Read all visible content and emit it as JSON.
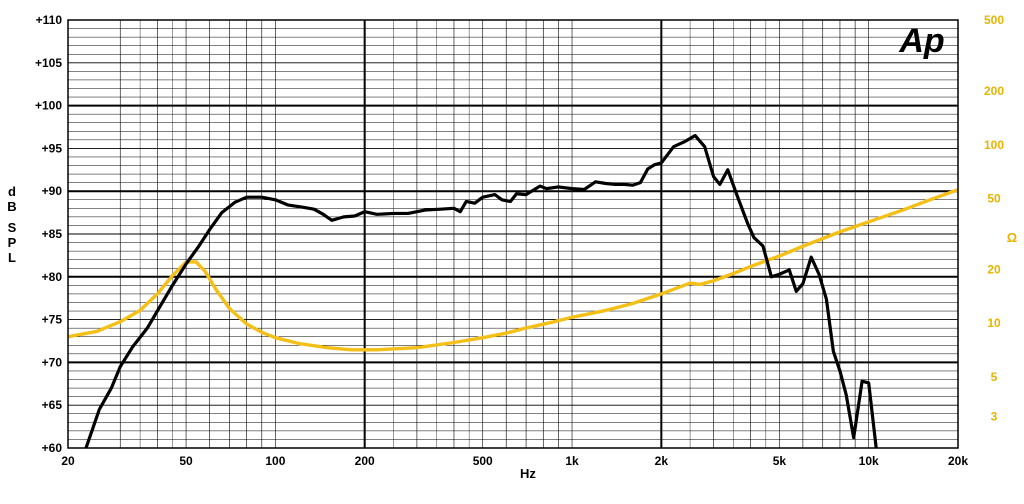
{
  "chart_data": {
    "type": "line",
    "xscale": "log",
    "xlim": [
      20,
      20000
    ],
    "xlabel": "Hz",
    "x_ticks": [
      {
        "v": 20,
        "label": "20"
      },
      {
        "v": 50,
        "label": "50"
      },
      {
        "v": 100,
        "label": "100"
      },
      {
        "v": 200,
        "label": "200"
      },
      {
        "v": 500,
        "label": "500"
      },
      {
        "v": 1000,
        "label": "1k"
      },
      {
        "v": 2000,
        "label": "2k"
      },
      {
        "v": 5000,
        "label": "5k"
      },
      {
        "v": 10000,
        "label": "10k"
      },
      {
        "v": 20000,
        "label": "20k"
      }
    ],
    "ylim_left": [
      60,
      110
    ],
    "ylabel_left": "dB SPL",
    "y_left_ticks": [
      {
        "v": 60,
        "label": "+60"
      },
      {
        "v": 65,
        "label": "+65"
      },
      {
        "v": 70,
        "label": "+70"
      },
      {
        "v": 75,
        "label": "+75"
      },
      {
        "v": 80,
        "label": "+80"
      },
      {
        "v": 85,
        "label": "+85"
      },
      {
        "v": 90,
        "label": "+90"
      },
      {
        "v": 95,
        "label": "+95"
      },
      {
        "v": 100,
        "label": "+100"
      },
      {
        "v": 105,
        "label": "+105"
      },
      {
        "v": 110,
        "label": "+110"
      }
    ],
    "yscale_right": "log",
    "ylim_right": [
      2,
      500
    ],
    "ylabel_right": "Ω",
    "y_right_ticks": [
      {
        "v": 3,
        "label": "3"
      },
      {
        "v": 5,
        "label": "5"
      },
      {
        "v": 10,
        "label": "10"
      },
      {
        "v": 20,
        "label": "20"
      },
      {
        "v": 50,
        "label": "50"
      },
      {
        "v": 100,
        "label": "100"
      },
      {
        "v": 200,
        "label": "200"
      },
      {
        "v": 500,
        "label": "500"
      }
    ],
    "grid": true,
    "logo": "Ap",
    "series": [
      {
        "axis": "left",
        "color": "#000000",
        "points": [
          [
            23,
            60
          ],
          [
            25.5,
            64.5
          ],
          [
            28,
            67
          ],
          [
            30,
            69.5
          ],
          [
            33,
            71.8
          ],
          [
            37,
            74
          ],
          [
            40,
            76
          ],
          [
            45,
            79
          ],
          [
            50,
            81.5
          ],
          [
            55,
            83.5
          ],
          [
            60,
            85.5
          ],
          [
            66,
            87.5
          ],
          [
            73,
            88.7
          ],
          [
            80,
            89.3
          ],
          [
            90,
            89.3
          ],
          [
            100,
            89
          ],
          [
            110,
            88.4
          ],
          [
            125,
            88.1
          ],
          [
            135,
            87.9
          ],
          [
            145,
            87.3
          ],
          [
            155,
            86.6
          ],
          [
            170,
            87
          ],
          [
            185,
            87.1
          ],
          [
            200,
            87.6
          ],
          [
            220,
            87.3
          ],
          [
            250,
            87.4
          ],
          [
            280,
            87.4
          ],
          [
            320,
            87.8
          ],
          [
            360,
            87.9
          ],
          [
            400,
            88
          ],
          [
            420,
            87.6
          ],
          [
            440,
            88.8
          ],
          [
            470,
            88.6
          ],
          [
            500,
            89.3
          ],
          [
            550,
            89.6
          ],
          [
            580,
            89
          ],
          [
            620,
            88.8
          ],
          [
            650,
            89.7
          ],
          [
            700,
            89.6
          ],
          [
            780,
            90.6
          ],
          [
            820,
            90.3
          ],
          [
            900,
            90.5
          ],
          [
            1000,
            90.3
          ],
          [
            1100,
            90.2
          ],
          [
            1200,
            91.1
          ],
          [
            1300,
            90.9
          ],
          [
            1400,
            90.8
          ],
          [
            1500,
            90.8
          ],
          [
            1600,
            90.7
          ],
          [
            1700,
            91
          ],
          [
            1800,
            92.6
          ],
          [
            1900,
            93.1
          ],
          [
            2000,
            93.3
          ],
          [
            2200,
            95.2
          ],
          [
            2400,
            95.8
          ],
          [
            2600,
            96.5
          ],
          [
            2800,
            95.2
          ],
          [
            3000,
            91.7
          ],
          [
            3150,
            90.8
          ],
          [
            3350,
            92.5
          ],
          [
            3600,
            89.5
          ],
          [
            3900,
            86.3
          ],
          [
            4100,
            84.6
          ],
          [
            4400,
            83.6
          ],
          [
            4700,
            80
          ],
          [
            5000,
            80.3
          ],
          [
            5400,
            80.8
          ],
          [
            5700,
            78.3
          ],
          [
            6000,
            79.2
          ],
          [
            6400,
            82.3
          ],
          [
            6800,
            80.3
          ],
          [
            7200,
            77.4
          ],
          [
            7600,
            71.3
          ],
          [
            8000,
            69
          ],
          [
            8400,
            66.2
          ],
          [
            8900,
            61.2
          ],
          [
            9500,
            67.8
          ],
          [
            10000,
            67.6
          ],
          [
            10600,
            60
          ]
        ]
      },
      {
        "axis": "right",
        "color": "#f4bf16",
        "points": [
          [
            20,
            8.4
          ],
          [
            25,
            9.0
          ],
          [
            30,
            10.2
          ],
          [
            35,
            11.8
          ],
          [
            40,
            14.6
          ],
          [
            45,
            18.5
          ],
          [
            50,
            22
          ],
          [
            54,
            22.1
          ],
          [
            58,
            19.5
          ],
          [
            63,
            15.5
          ],
          [
            70,
            12.1
          ],
          [
            80,
            9.9
          ],
          [
            90,
            8.9
          ],
          [
            100,
            8.3
          ],
          [
            120,
            7.7
          ],
          [
            150,
            7.3
          ],
          [
            180,
            7.1
          ],
          [
            220,
            7.1
          ],
          [
            300,
            7.3
          ],
          [
            400,
            7.8
          ],
          [
            500,
            8.3
          ],
          [
            600,
            8.8
          ],
          [
            700,
            9.4
          ],
          [
            850,
            10.1
          ],
          [
            1000,
            10.8
          ],
          [
            1300,
            11.8
          ],
          [
            1600,
            12.9
          ],
          [
            2000,
            14.6
          ],
          [
            2500,
            16.8
          ],
          [
            2700,
            16.5
          ],
          [
            3000,
            17.3
          ],
          [
            3500,
            19
          ],
          [
            4000,
            20.8
          ],
          [
            5000,
            23.8
          ],
          [
            6000,
            27
          ],
          [
            8000,
            32.5
          ],
          [
            10000,
            37
          ],
          [
            13000,
            43
          ],
          [
            16000,
            49
          ],
          [
            20000,
            56
          ]
        ]
      }
    ]
  }
}
